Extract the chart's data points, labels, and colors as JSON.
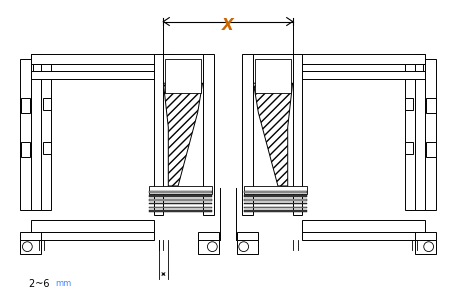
{
  "bg_color": "#ffffff",
  "line_color": "#000000",
  "x_label": "X",
  "x_label_color": "#cc6600",
  "dim_text": "2~6 ",
  "dim_mm_color": "#4488ff",
  "figsize": [
    4.57,
    2.9
  ],
  "dpi": 100
}
